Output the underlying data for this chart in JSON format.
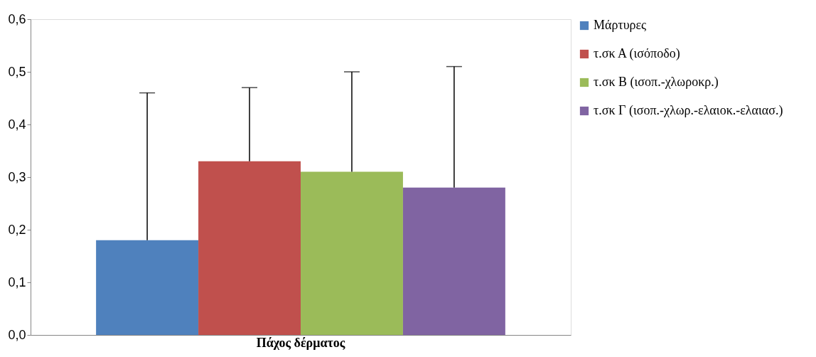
{
  "chart_data": {
    "type": "bar",
    "categories": [
      "Πάχος δέρματος"
    ],
    "series": [
      {
        "name": "Μάρτυρες",
        "color": "#4f81bd",
        "values": [
          0.18
        ],
        "errors": [
          [
            0.18,
            0.46
          ]
        ]
      },
      {
        "name": "τ.σκ Α (ισόποδο)",
        "color": "#c0504d",
        "values": [
          0.33
        ],
        "errors": [
          [
            0.33,
            0.47
          ]
        ]
      },
      {
        "name": "τ.σκ Β (ισοπ.-χλωροκρ.)",
        "color": "#9bbb59",
        "values": [
          0.31
        ],
        "errors": [
          [
            0.31,
            0.5
          ]
        ]
      },
      {
        "name": "τ.σκ Γ (ισοπ.-χλωρ.-ελαιοκ.-ελαιασ.)",
        "color": "#8064a2",
        "values": [
          0.28
        ],
        "errors": [
          [
            0.28,
            0.51
          ]
        ]
      }
    ],
    "ylim": [
      0,
      0.6
    ],
    "yticks": [
      {
        "value": 0,
        "label": "0,0"
      },
      {
        "value": 0.1,
        "label": "0,1"
      },
      {
        "value": 0.2,
        "label": "0,2"
      },
      {
        "value": 0.3,
        "label": "0,3"
      },
      {
        "value": 0.4,
        "label": "0,4"
      },
      {
        "value": 0.5,
        "label": "0,5"
      },
      {
        "value": 0.6,
        "label": "0,6"
      }
    ],
    "grid": false,
    "legend": "right"
  }
}
